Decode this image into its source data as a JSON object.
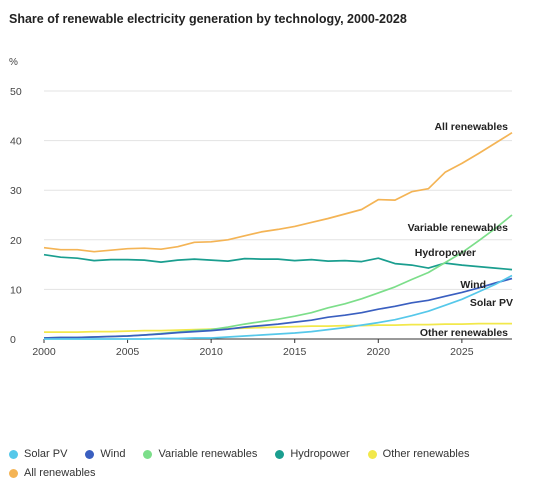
{
  "chart_data": {
    "type": "line",
    "title": "Share of renewable electricity generation by technology, 2000-2028",
    "unit": "%",
    "xlabel": "",
    "ylabel": "",
    "xlim": [
      2000,
      2028
    ],
    "ylim": [
      0,
      50
    ],
    "xticks": [
      "2000",
      "2005",
      "2010",
      "2015",
      "2020",
      "2025"
    ],
    "yticks": [
      "0",
      "10",
      "20",
      "30",
      "40",
      "50"
    ],
    "grid": "horizontal",
    "legend_position": "bottom",
    "x": [
      2000,
      2001,
      2002,
      2003,
      2004,
      2005,
      2006,
      2007,
      2008,
      2009,
      2010,
      2011,
      2012,
      2013,
      2014,
      2015,
      2016,
      2017,
      2018,
      2019,
      2020,
      2021,
      2022,
      2023,
      2024,
      2025,
      2026,
      2027,
      2028
    ],
    "series": [
      {
        "name": "Solar PV",
        "label": "Solar PV",
        "color": "#56c8ea",
        "values": [
          0,
          0,
          0,
          0,
          0,
          0,
          0,
          0.1,
          0.1,
          0.2,
          0.2,
          0.4,
          0.6,
          0.8,
          1.0,
          1.2,
          1.5,
          1.9,
          2.3,
          2.8,
          3.3,
          3.9,
          4.7,
          5.6,
          6.8,
          8.0,
          9.5,
          11.0,
          12.8
        ]
      },
      {
        "name": "Wind",
        "label": "Wind",
        "color": "#3a5fc0",
        "values": [
          0.2,
          0.3,
          0.3,
          0.4,
          0.5,
          0.6,
          0.8,
          1.0,
          1.3,
          1.5,
          1.7,
          2.0,
          2.4,
          2.7,
          3.0,
          3.4,
          3.8,
          4.4,
          4.8,
          5.3,
          6.0,
          6.6,
          7.3,
          7.8,
          8.6,
          9.4,
          10.3,
          11.3,
          12.2
        ]
      },
      {
        "name": "Variable renewables",
        "label": "Variable renewables",
        "color": "#7cde8a",
        "values": [
          0.2,
          0.3,
          0.3,
          0.4,
          0.5,
          0.6,
          0.8,
          1.1,
          1.4,
          1.7,
          1.9,
          2.4,
          3.0,
          3.5,
          4.0,
          4.6,
          5.3,
          6.3,
          7.1,
          8.1,
          9.3,
          10.5,
          12.0,
          13.4,
          15.4,
          17.4,
          19.8,
          22.3,
          25.0
        ]
      },
      {
        "name": "Hydropower",
        "label": "Hydropower",
        "color": "#1a9e8f",
        "values": [
          17.0,
          16.5,
          16.3,
          15.8,
          16.0,
          16.0,
          15.9,
          15.5,
          15.9,
          16.1,
          15.9,
          15.7,
          16.2,
          16.1,
          16.1,
          15.8,
          16.0,
          15.7,
          15.8,
          15.6,
          16.3,
          15.2,
          14.9,
          14.3,
          15.3,
          14.9,
          14.6,
          14.3,
          14.0
        ]
      },
      {
        "name": "Other renewables",
        "label": "Other renewables",
        "color": "#f2e84b",
        "values": [
          1.4,
          1.4,
          1.4,
          1.5,
          1.5,
          1.6,
          1.7,
          1.7,
          1.8,
          1.9,
          2.0,
          2.1,
          2.2,
          2.3,
          2.4,
          2.5,
          2.6,
          2.6,
          2.7,
          2.7,
          2.8,
          2.8,
          2.9,
          2.9,
          3.0,
          3.0,
          3.1,
          3.1,
          3.1
        ]
      },
      {
        "name": "All renewables",
        "label": "All renewables",
        "color": "#f4b455",
        "values": [
          18.4,
          18.0,
          18.0,
          17.6,
          17.9,
          18.2,
          18.3,
          18.1,
          18.6,
          19.5,
          19.6,
          20.0,
          20.8,
          21.6,
          22.1,
          22.7,
          23.5,
          24.3,
          25.2,
          26.1,
          28.1,
          28.0,
          29.7,
          30.3,
          33.6,
          35.4,
          37.4,
          39.5,
          41.6
        ]
      }
    ]
  }
}
